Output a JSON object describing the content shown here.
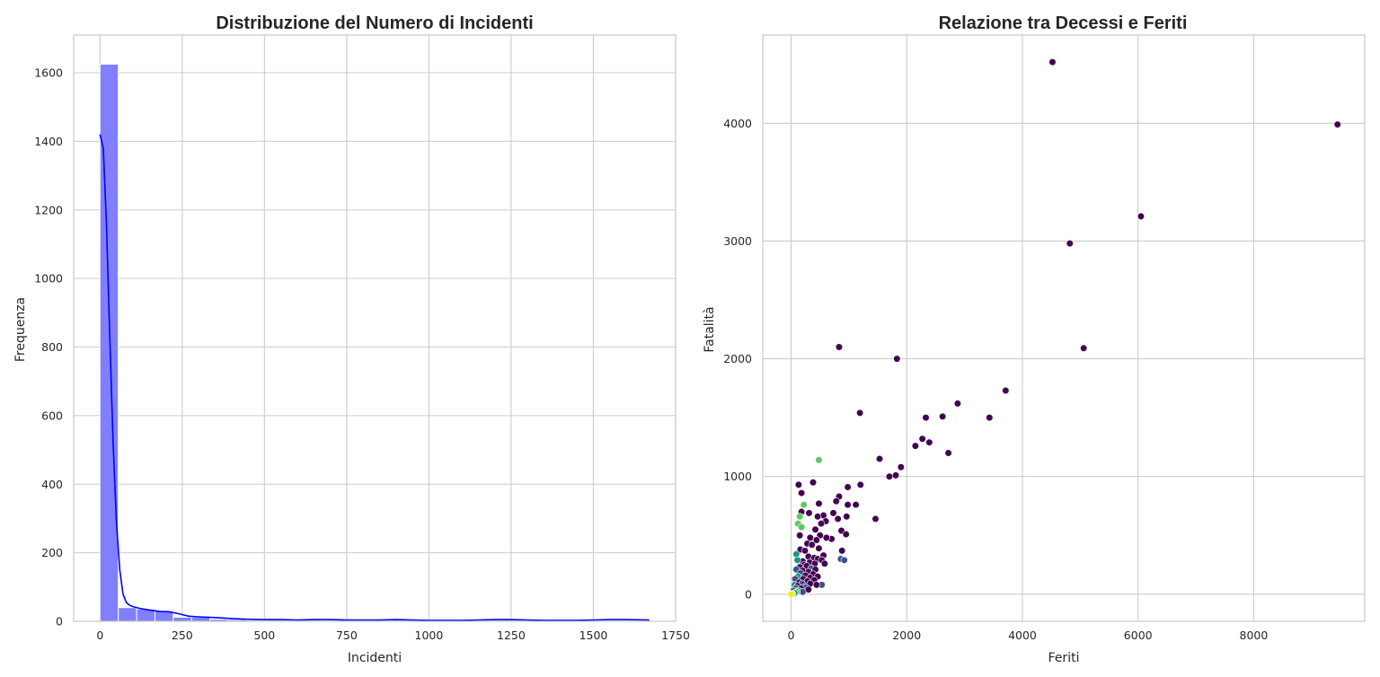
{
  "colors": {
    "hist_bar": "#8080ff",
    "hist_edge": "#ffffff",
    "kde_line": "#0000ff",
    "grid": "#cccccc",
    "text": "#262626"
  },
  "chart_data": [
    {
      "type": "bar",
      "title": "Distribuzione del Numero di Incidenti",
      "xlabel": "Incidenti",
      "ylabel": "Frequenza",
      "xlim": [
        -80,
        1750
      ],
      "ylim": [
        0,
        1710
      ],
      "xticks": [
        0,
        250,
        500,
        750,
        1000,
        1250,
        1500,
        1750
      ],
      "yticks": [
        0,
        200,
        400,
        600,
        800,
        1000,
        1200,
        1400,
        1600
      ],
      "grid": true,
      "bin_width": 55.7,
      "bins": [
        {
          "x0": 0,
          "count": 1625
        },
        {
          "x0": 55.7,
          "count": 40
        },
        {
          "x0": 111.4,
          "count": 36
        },
        {
          "x0": 167.1,
          "count": 30
        },
        {
          "x0": 222.8,
          "count": 12
        },
        {
          "x0": 278.5,
          "count": 12
        },
        {
          "x0": 334.2,
          "count": 6
        },
        {
          "x0": 389.9,
          "count": 5
        },
        {
          "x0": 445.6,
          "count": 3
        },
        {
          "x0": 501.3,
          "count": 3
        },
        {
          "x0": 557,
          "count": 2
        },
        {
          "x0": 612.7,
          "count": 3
        },
        {
          "x0": 668.4,
          "count": 2
        },
        {
          "x0": 724.1,
          "count": 2
        },
        {
          "x0": 779.8,
          "count": 2
        },
        {
          "x0": 835.5,
          "count": 2
        },
        {
          "x0": 891.2,
          "count": 3
        },
        {
          "x0": 946.9,
          "count": 2
        },
        {
          "x0": 1002.6,
          "count": 1
        },
        {
          "x0": 1058.3,
          "count": 1
        },
        {
          "x0": 1114,
          "count": 1
        },
        {
          "x0": 1169.7,
          "count": 3
        },
        {
          "x0": 1225.4,
          "count": 3
        },
        {
          "x0": 1281.1,
          "count": 2
        },
        {
          "x0": 1336.8,
          "count": 1
        },
        {
          "x0": 1392.5,
          "count": 1
        },
        {
          "x0": 1448.2,
          "count": 1
        },
        {
          "x0": 1503.9,
          "count": 2
        },
        {
          "x0": 1559.6,
          "count": 2
        },
        {
          "x0": 1615.3,
          "count": 2
        }
      ],
      "kde": {
        "x": [
          0,
          10,
          20,
          30,
          40,
          50,
          60,
          70,
          80,
          90,
          100,
          120,
          150,
          180,
          210,
          240,
          270,
          300,
          350,
          400,
          450,
          500,
          550,
          600,
          650,
          700,
          750,
          800,
          850,
          900,
          950,
          1000,
          1050,
          1100,
          1150,
          1200,
          1250,
          1300,
          1350,
          1400,
          1450,
          1500,
          1550,
          1600,
          1670
        ],
        "y": [
          1420,
          1380,
          1150,
          820,
          520,
          290,
          150,
          80,
          55,
          47,
          43,
          38,
          33,
          29,
          28,
          22,
          15,
          13,
          11,
          8,
          6,
          5,
          5,
          4,
          5,
          5,
          4,
          4,
          4,
          5,
          4,
          3,
          3,
          3,
          4,
          5,
          5,
          4,
          3,
          3,
          3,
          4,
          5,
          5,
          4
        ]
      }
    },
    {
      "type": "scatter",
      "title": "Relazione tra Decessi e Feriti",
      "xlabel": "Feriti",
      "ylabel": "Fatalità",
      "xlim": [
        -490,
        9920
      ],
      "ylim": [
        -230,
        4750
      ],
      "xticks": [
        0,
        2000,
        4000,
        6000,
        8000
      ],
      "yticks": [
        0,
        1000,
        2000,
        3000,
        4000
      ],
      "grid": true,
      "hue_palette": [
        "#440154",
        "#3b528b",
        "#21918c",
        "#5ec962",
        "#fde725"
      ],
      "points": [
        [
          4520,
          4520,
          0
        ],
        [
          9450,
          3990,
          0
        ],
        [
          6050,
          3210,
          0
        ],
        [
          4820,
          2980,
          0
        ],
        [
          5060,
          2090,
          0
        ],
        [
          830,
          2100,
          0
        ],
        [
          1830,
          2000,
          0
        ],
        [
          3710,
          1730,
          0
        ],
        [
          2880,
          1620,
          0
        ],
        [
          2620,
          1510,
          0
        ],
        [
          2330,
          1500,
          0
        ],
        [
          3430,
          1500,
          0
        ],
        [
          1190,
          1540,
          0
        ],
        [
          2270,
          1320,
          0
        ],
        [
          2390,
          1290,
          0
        ],
        [
          2150,
          1260,
          0
        ],
        [
          2720,
          1200,
          0
        ],
        [
          1530,
          1150,
          0
        ],
        [
          1900,
          1080,
          0
        ],
        [
          1700,
          1000,
          0
        ],
        [
          1810,
          1010,
          0
        ],
        [
          480,
          1140,
          3
        ],
        [
          380,
          950,
          0
        ],
        [
          130,
          930,
          0
        ],
        [
          1200,
          930,
          0
        ],
        [
          980,
          910,
          0
        ],
        [
          180,
          860,
          0
        ],
        [
          830,
          830,
          0
        ],
        [
          780,
          790,
          0
        ],
        [
          1120,
          760,
          0
        ],
        [
          980,
          760,
          0
        ],
        [
          480,
          770,
          0
        ],
        [
          220,
          760,
          3
        ],
        [
          180,
          700,
          0
        ],
        [
          310,
          690,
          0
        ],
        [
          730,
          690,
          0
        ],
        [
          560,
          670,
          0
        ],
        [
          460,
          660,
          0
        ],
        [
          960,
          660,
          0
        ],
        [
          1460,
          640,
          0
        ],
        [
          810,
          640,
          0
        ],
        [
          150,
          660,
          3
        ],
        [
          600,
          620,
          0
        ],
        [
          520,
          600,
          0
        ],
        [
          120,
          600,
          3
        ],
        [
          180,
          570,
          3
        ],
        [
          870,
          540,
          0
        ],
        [
          420,
          550,
          0
        ],
        [
          700,
          470,
          0
        ],
        [
          950,
          510,
          0
        ],
        [
          500,
          500,
          0
        ],
        [
          150,
          500,
          0
        ],
        [
          330,
          480,
          0
        ],
        [
          610,
          480,
          0
        ],
        [
          440,
          460,
          0
        ],
        [
          280,
          430,
          0
        ],
        [
          360,
          420,
          0
        ],
        [
          480,
          390,
          0
        ],
        [
          160,
          380,
          0
        ],
        [
          240,
          370,
          0
        ],
        [
          880,
          370,
          0
        ],
        [
          90,
          340,
          2
        ],
        [
          560,
          330,
          0
        ],
        [
          300,
          320,
          0
        ],
        [
          400,
          310,
          0
        ],
        [
          460,
          300,
          0
        ],
        [
          530,
          290,
          0
        ],
        [
          860,
          300,
          1
        ],
        [
          920,
          290,
          1
        ],
        [
          200,
          280,
          0
        ],
        [
          110,
          290,
          2
        ],
        [
          320,
          270,
          0
        ],
        [
          410,
          260,
          0
        ],
        [
          230,
          250,
          0
        ],
        [
          580,
          260,
          0
        ],
        [
          270,
          240,
          0
        ],
        [
          150,
          230,
          0
        ],
        [
          350,
          220,
          1
        ],
        [
          420,
          210,
          0
        ],
        [
          90,
          210,
          1
        ],
        [
          200,
          200,
          0
        ],
        [
          300,
          190,
          0
        ],
        [
          160,
          180,
          1
        ],
        [
          380,
          170,
          0
        ],
        [
          250,
          160,
          0
        ],
        [
          460,
          150,
          0
        ],
        [
          120,
          150,
          2
        ],
        [
          330,
          140,
          0
        ],
        [
          210,
          130,
          0
        ],
        [
          70,
          130,
          1
        ],
        [
          400,
          120,
          0
        ],
        [
          280,
          110,
          0
        ],
        [
          140,
          100,
          0
        ],
        [
          190,
          90,
          1
        ],
        [
          330,
          90,
          0
        ],
        [
          530,
          80,
          1
        ],
        [
          440,
          80,
          0
        ],
        [
          60,
          80,
          2
        ],
        [
          110,
          70,
          0
        ],
        [
          250,
          60,
          1
        ],
        [
          170,
          50,
          0
        ],
        [
          80,
          50,
          1
        ],
        [
          300,
          40,
          0
        ],
        [
          130,
          30,
          2
        ],
        [
          40,
          30,
          1
        ],
        [
          200,
          20,
          1
        ],
        [
          100,
          20,
          3
        ],
        [
          60,
          10,
          2
        ],
        [
          20,
          5,
          4
        ],
        [
          0,
          0,
          4
        ]
      ]
    }
  ]
}
